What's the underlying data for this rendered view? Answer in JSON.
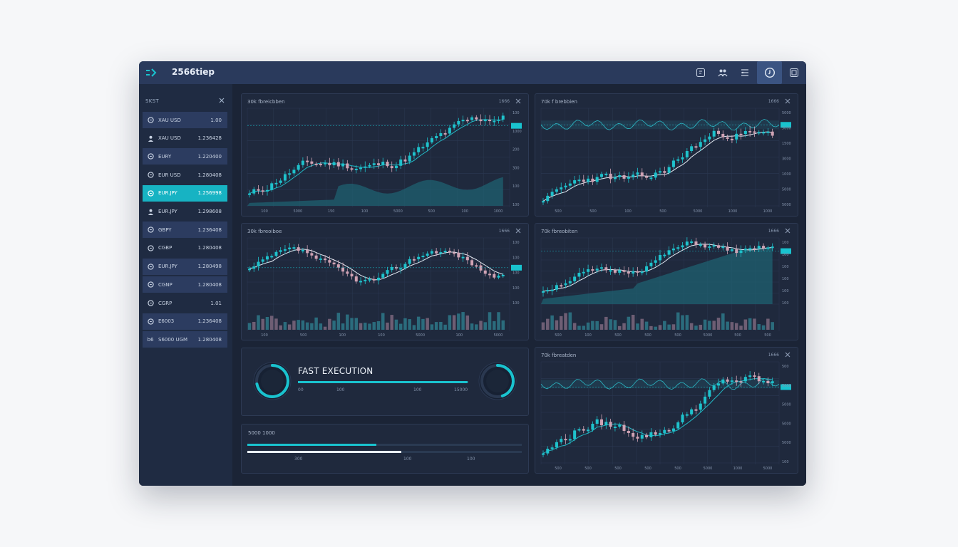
{
  "app": {
    "title": "2566tiep"
  },
  "toolbar": {
    "icons": [
      "layout-icon",
      "users-icon",
      "list-icon",
      "timer-icon",
      "snapshot-icon"
    ],
    "active_index": 3
  },
  "sidebar": {
    "header": "SKST",
    "items": [
      {
        "icon": "coin-icon",
        "symbol": "XAU USD",
        "price": "1.00",
        "style": "highlight"
      },
      {
        "icon": "user-icon",
        "symbol": "XAU USD",
        "price": "1.236428",
        "style": "plain"
      },
      {
        "icon": "coin-icon",
        "symbol": "EURY",
        "price": "1.220400",
        "style": "highlight"
      },
      {
        "icon": "coin-icon",
        "symbol": "EUR USD",
        "price": "1.280408",
        "style": "plain"
      },
      {
        "icon": "coin-icon",
        "symbol": "EUR.JPY",
        "price": "1.256998",
        "style": "selected"
      },
      {
        "icon": "user-icon",
        "symbol": "EUR.JPY",
        "price": "1.298608",
        "style": "plain"
      },
      {
        "icon": "coin-icon",
        "symbol": "GBPY",
        "price": "1.236408",
        "style": "highlight"
      },
      {
        "icon": "coin-icon",
        "symbol": "CGBP",
        "price": "1.280408",
        "style": "plain"
      },
      {
        "icon": "coin-icon",
        "symbol": "EUR.JPY",
        "price": "1.280498",
        "style": "highlight"
      },
      {
        "icon": "coin-icon",
        "symbol": "CGNP",
        "price": "1.280408",
        "style": "highlight"
      },
      {
        "icon": "coin-icon",
        "symbol": "CGRP",
        "price": "1.01",
        "style": "plain"
      },
      {
        "icon": "coin-icon",
        "symbol": "E6003",
        "price": "1.236408",
        "style": "highlight"
      },
      {
        "icon": "b6-icon",
        "symbol": "S6000 UGM",
        "price": "1.280408",
        "style": "highlight"
      }
    ]
  },
  "charts": [
    {
      "title": "30k fbreicbben",
      "meta": "1666",
      "price_tag": "",
      "x_labels": [
        "100",
        "5000",
        "150",
        "100",
        "5000",
        "500",
        "100",
        "1000"
      ],
      "y_labels": [
        "100",
        "1000",
        "200",
        "300",
        "100",
        "100"
      ],
      "has_volume": false
    },
    {
      "title": "70k f brebbien",
      "meta": "1666",
      "price_tag": "",
      "x_labels": [
        "500",
        "500",
        "100",
        "500",
        "5000",
        "1000",
        "1000"
      ],
      "y_labels": [
        "5000",
        "5000",
        "1500",
        "3000",
        "1000",
        "5000",
        "5000"
      ],
      "has_volume": false
    },
    {
      "title": "30k fbreoiboe",
      "meta": "1666",
      "price_tag": "",
      "x_labels": [
        "100",
        "500",
        "100",
        "100",
        "5000",
        "100",
        "5000"
      ],
      "y_labels": [
        "100",
        "100",
        "100",
        "100",
        "100"
      ],
      "has_volume": true
    },
    {
      "title": "70k fbreobiten",
      "meta": "1666",
      "price_tag": "",
      "x_labels": [
        "500",
        "100",
        "500",
        "500",
        "500",
        "5000",
        "500",
        "500"
      ],
      "y_labels": [
        "100",
        "100",
        "100",
        "100",
        "100",
        "100"
      ],
      "has_volume": true
    },
    {
      "title": "70k fbreatden",
      "meta": "1666",
      "price_tag": "",
      "x_labels": [
        "500",
        "500",
        "500",
        "500",
        "500",
        "5000",
        "1000",
        "5000"
      ],
      "y_labels": [
        "500",
        "5000",
        "5000",
        "5000",
        "5000",
        "100"
      ],
      "has_volume": false
    }
  ],
  "execution": {
    "title": "FAST EXECUTION",
    "progress": 0.99,
    "ticks": [
      "00",
      "100",
      "100",
      "15000"
    ],
    "gauge_left": 0.72,
    "gauge_right": 0.45
  },
  "bars": {
    "title": "5000 1000",
    "bar1_fraction": 0.47,
    "bar2_fraction": 0.56,
    "ticks": [
      "300",
      "100",
      "100"
    ]
  },
  "colors": {
    "accent": "#19c3cf",
    "bull": "#1fc2cc",
    "bear": "#d0a3b4",
    "volume": "#2f6f7f"
  }
}
